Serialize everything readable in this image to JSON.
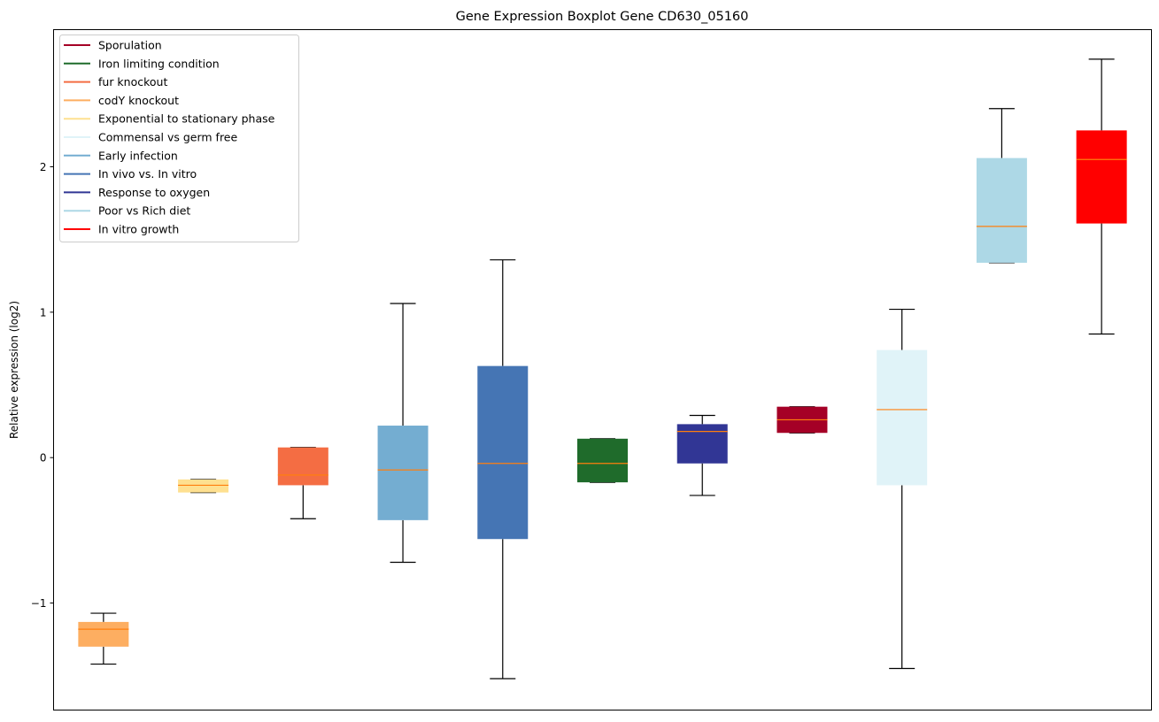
{
  "chart_data": {
    "type": "boxplot",
    "title": "Gene Expression Boxplot Gene CD630_05160",
    "xlabel": "",
    "ylabel": "Relative expression (log2)",
    "ylim": [
      -1.736,
      2.943
    ],
    "yticks": [
      -1,
      0,
      1,
      2
    ],
    "ytick_labels": [
      "−1",
      "0",
      "1",
      "2"
    ],
    "grid": false,
    "legend_position": "top-left",
    "median_color": "#ff7f0e",
    "boxes": [
      {
        "name": "codY knockout",
        "color": "#fdae61",
        "whislo": -1.42,
        "q1": -1.3,
        "med": -1.18,
        "q3": -1.13,
        "whishi": -1.07
      },
      {
        "name": "Exponential to stationary phase",
        "color": "#fee090",
        "whislo": -0.24,
        "q1": -0.24,
        "med": -0.19,
        "q3": -0.15,
        "whishi": -0.15
      },
      {
        "name": "fur knockout",
        "color": "#f46d43",
        "whislo": -0.42,
        "q1": -0.19,
        "med": -0.12,
        "q3": 0.07,
        "whishi": 0.07
      },
      {
        "name": "Early infection",
        "color": "#74add1",
        "whislo": -0.72,
        "q1": -0.43,
        "med": -0.085,
        "q3": 0.22,
        "whishi": 1.06
      },
      {
        "name": "In vivo vs. In vitro",
        "color": "#4575b4",
        "whislo": -1.52,
        "q1": -0.56,
        "med": -0.04,
        "q3": 0.63,
        "whishi": 1.36
      },
      {
        "name": "Iron limiting condition",
        "color": "#1f6b2b",
        "whislo": -0.17,
        "q1": -0.17,
        "med": -0.04,
        "q3": 0.13,
        "whishi": 0.13
      },
      {
        "name": "Response to oxygen",
        "color": "#313695",
        "whislo": -0.26,
        "q1": -0.04,
        "med": 0.18,
        "q3": 0.23,
        "whishi": 0.29
      },
      {
        "name": "Sporulation",
        "color": "#a50026",
        "whislo": 0.17,
        "q1": 0.17,
        "med": 0.26,
        "q3": 0.35,
        "whishi": 0.35
      },
      {
        "name": "Commensal vs germ free",
        "color": "#e0f3f8",
        "whislo": -1.45,
        "q1": -0.19,
        "med": 0.33,
        "q3": 0.74,
        "whishi": 1.02
      },
      {
        "name": "Poor vs Rich diet",
        "color": "#add8e6",
        "whislo": 1.34,
        "q1": 1.34,
        "med": 1.59,
        "q3": 2.06,
        "whishi": 2.4
      },
      {
        "name": "In vitro growth",
        "color": "#ff0000",
        "whislo": 0.85,
        "q1": 1.61,
        "med": 2.05,
        "q3": 2.25,
        "whishi": 2.74
      }
    ],
    "legend": [
      {
        "label": "Sporulation",
        "color": "#a50026"
      },
      {
        "label": "Iron limiting condition",
        "color": "#1f6b2b"
      },
      {
        "label": "fur knockout",
        "color": "#f46d43"
      },
      {
        "label": "codY knockout",
        "color": "#fdae61"
      },
      {
        "label": "Exponential to stationary phase",
        "color": "#fee090"
      },
      {
        "label": "Commensal vs germ free",
        "color": "#e0f3f8"
      },
      {
        "label": "Early infection",
        "color": "#74add1"
      },
      {
        "label": "In vivo vs. In vitro",
        "color": "#4575b4"
      },
      {
        "label": "Response to oxygen",
        "color": "#313695"
      },
      {
        "label": "Poor vs Rich diet",
        "color": "#add8e6"
      },
      {
        "label": "In vitro growth",
        "color": "#ff0000"
      }
    ]
  }
}
